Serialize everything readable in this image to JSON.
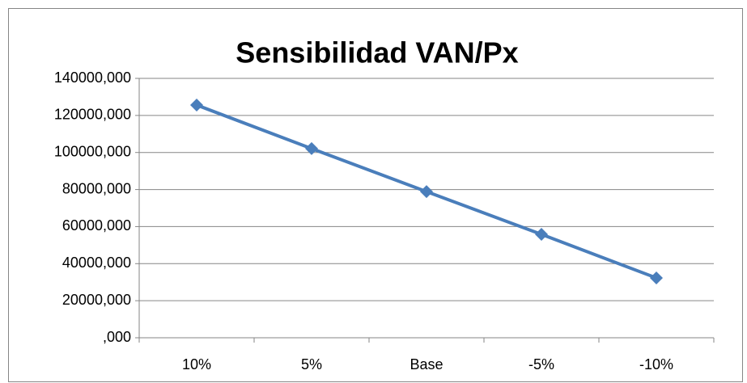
{
  "chart_data": {
    "type": "line",
    "title": "Sensibilidad VAN/Px",
    "categories": [
      "10%",
      "5%",
      "Base",
      "-5%",
      "-10%"
    ],
    "series": [
      {
        "name": "VAN",
        "color": "#4a7ebb",
        "values": [
          125600,
          102100,
          78900,
          55800,
          32300
        ]
      }
    ],
    "ylim": [
      0,
      140000
    ],
    "yticks": [
      {
        "value": 0,
        "label": ",000"
      },
      {
        "value": 20000,
        "label": "20000,000"
      },
      {
        "value": 40000,
        "label": "40000,000"
      },
      {
        "value": 60000,
        "label": "60000,000"
      },
      {
        "value": 80000,
        "label": "80000,000"
      },
      {
        "value": 100000,
        "label": "100000,000"
      },
      {
        "value": 120000,
        "label": "120000,000"
      },
      {
        "value": 140000,
        "label": "140000,000"
      }
    ],
    "grid": true
  }
}
